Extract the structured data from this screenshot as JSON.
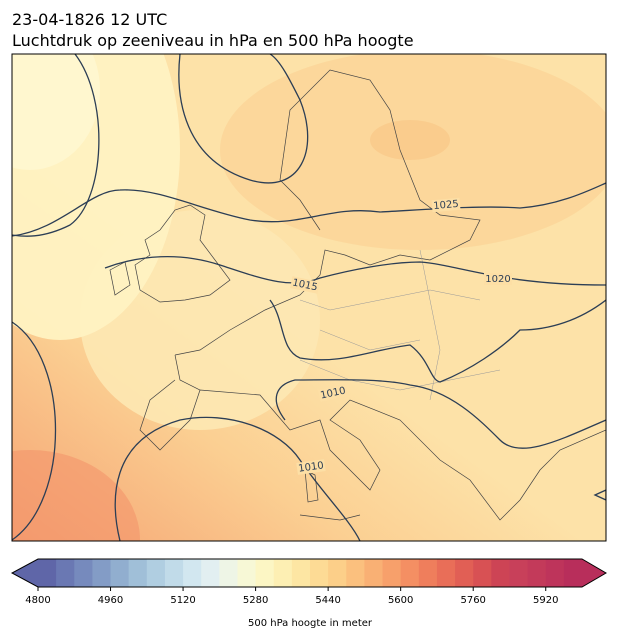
{
  "header": {
    "title_line1": "23-04-1826 12 UTC",
    "title_line2": "Luchtdruk op zeeniveau in hPa en 500 hPa hoogte"
  },
  "map": {
    "contour_labels": [
      "1025",
      "1020",
      "1015",
      "1010",
      "1010"
    ]
  },
  "colorbar": {
    "label": "500 hPa hoogte in meter",
    "lim": [
      4800,
      6000
    ],
    "ticks": [
      4800,
      4960,
      5120,
      5280,
      5440,
      5600,
      5760,
      5920
    ],
    "colors": [
      "#5f66a8",
      "#6a78b3",
      "#768abd",
      "#839cc6",
      "#91aecf",
      "#a0bfd8",
      "#b0cee1",
      "#c1dbe9",
      "#d2e7f0",
      "#e2eff1",
      "#eef5e6",
      "#f7f8d6",
      "#fcf6c4",
      "#fdefb3",
      "#fde6a3",
      "#fddb95",
      "#fccf89",
      "#fbc07e",
      "#f9b074",
      "#f7a06b",
      "#f48f63",
      "#ef7e5c",
      "#e96e58",
      "#e15f55",
      "#d85154",
      "#cd4455",
      "#c8405a",
      "#c33a5a",
      "#be345b",
      "#b82e5b"
    ]
  }
}
